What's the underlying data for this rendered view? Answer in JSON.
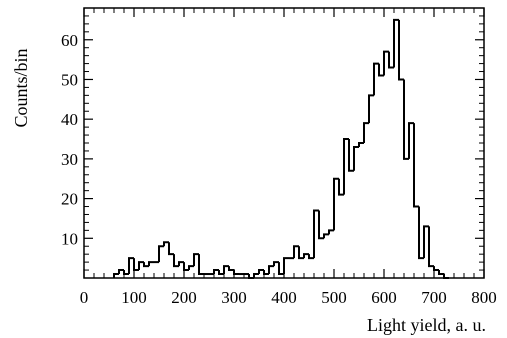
{
  "chart_data": {
    "type": "histogram",
    "title": "",
    "xlabel": "Light yield, a. u.",
    "ylabel": "Counts/bin",
    "xlim": [
      0,
      800
    ],
    "ylim": [
      0,
      68
    ],
    "xticks": [
      0,
      100,
      200,
      300,
      400,
      500,
      600,
      700,
      800
    ],
    "yticks": [
      10,
      20,
      30,
      40,
      50,
      60
    ],
    "grid": false,
    "legend": "none",
    "bin_width": 10,
    "series": [
      {
        "bin_starts": [
          60,
          70,
          80,
          90,
          100,
          110,
          120,
          130,
          140,
          150,
          160,
          170,
          180,
          190,
          200,
          210,
          220,
          230,
          240,
          250,
          260,
          270,
          280,
          290,
          300,
          310,
          320,
          330,
          340,
          350,
          360,
          370,
          380,
          390,
          400,
          410,
          420,
          430,
          440,
          450,
          460,
          470,
          480,
          490,
          500,
          510,
          520,
          530,
          540,
          550,
          560,
          570,
          580,
          590,
          600,
          610,
          620,
          630,
          640,
          650,
          660,
          670,
          680,
          690,
          700,
          710,
          720
        ],
        "values": [
          1,
          2,
          1,
          5,
          2,
          4,
          3,
          4,
          4,
          8,
          9,
          6,
          3,
          4,
          2,
          3,
          6,
          1,
          1,
          1,
          2,
          1,
          3,
          2,
          1,
          1,
          1,
          0,
          1,
          2,
          1,
          3,
          4,
          1,
          5,
          5,
          8,
          5,
          6,
          5,
          17,
          10,
          11,
          12,
          25,
          21,
          35,
          27,
          33,
          34,
          39,
          46,
          54,
          51,
          57,
          53,
          65,
          50,
          30,
          39,
          18,
          5,
          13,
          3,
          2,
          1,
          0
        ]
      }
    ]
  }
}
